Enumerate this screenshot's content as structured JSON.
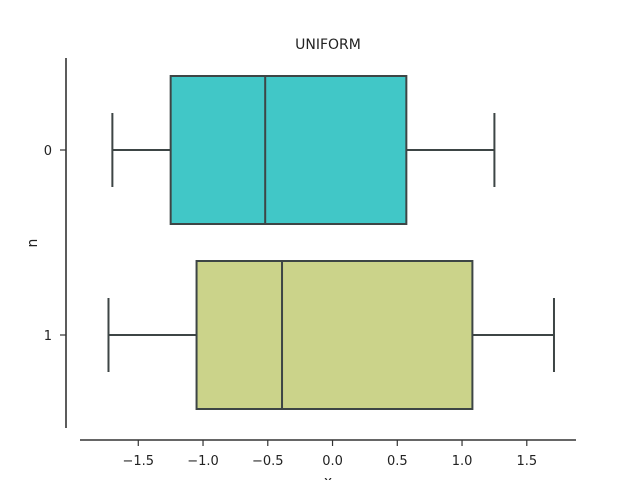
{
  "chart_data": {
    "type": "boxplot",
    "orientation": "horizontal",
    "title": "UNIFORM",
    "xlabel": "x",
    "ylabel": "n",
    "xlim": [
      -1.95,
      1.88
    ],
    "xticks": [
      -1.5,
      -1.0,
      -0.5,
      0.0,
      0.5,
      1.0,
      1.5
    ],
    "xtick_labels": [
      "−1.5",
      "−1.0",
      "−0.5",
      "0.0",
      "0.5",
      "1.0",
      "1.5"
    ],
    "categories": [
      "0",
      "1"
    ],
    "grid": false,
    "boxes": [
      {
        "category": "0",
        "whisker_low": -1.7,
        "q1": -1.25,
        "median": -0.52,
        "q3": 0.57,
        "whisker_high": 1.25,
        "color": "#41c7c7"
      },
      {
        "category": "1",
        "whisker_low": -1.73,
        "q1": -1.05,
        "median": -0.39,
        "q3": 1.08,
        "whisker_high": 1.71,
        "color": "#cbd38a"
      }
    ]
  }
}
